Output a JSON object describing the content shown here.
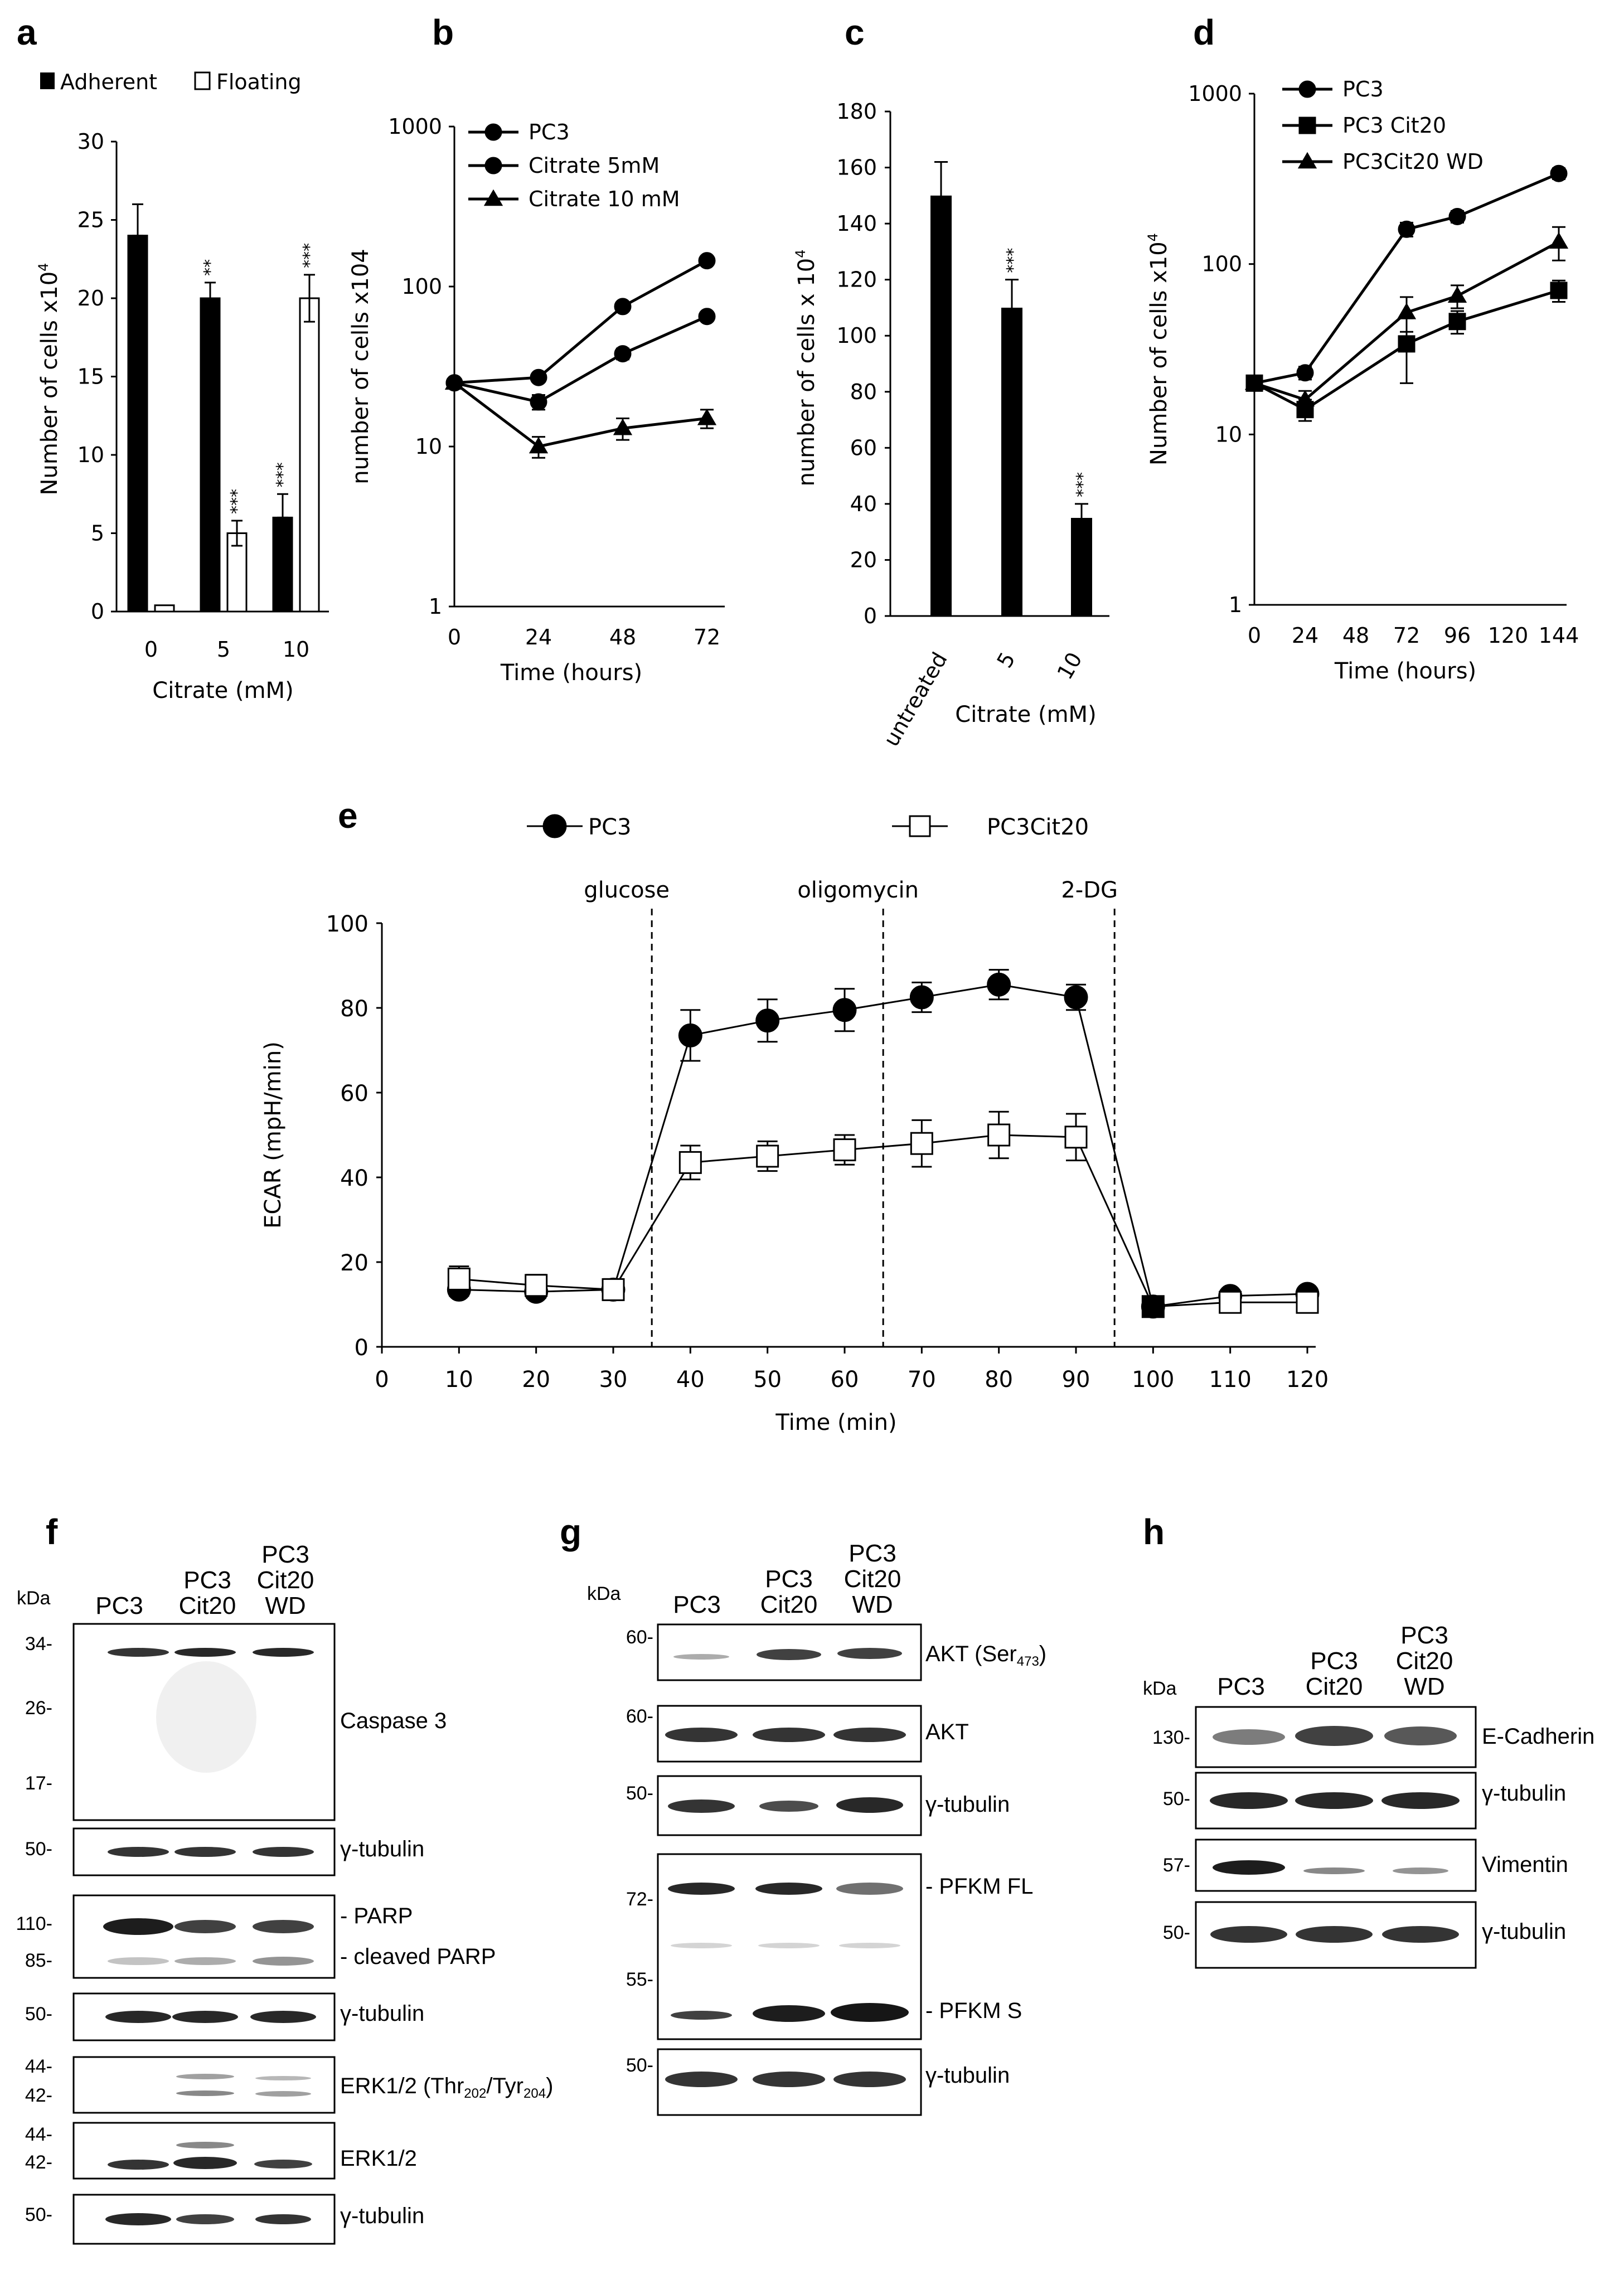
{
  "panels": {
    "a": "a",
    "b": "b",
    "c": "c",
    "d": "d",
    "e": "e",
    "f": "f",
    "g": "g",
    "h": "h"
  },
  "chart_data": [
    {
      "id": "a",
      "type": "bar",
      "title": "",
      "categories": [
        "0",
        "5",
        "10"
      ],
      "series": [
        {
          "name": "Adherent",
          "values": [
            24,
            20,
            6
          ],
          "errors": [
            2,
            1,
            1.5
          ],
          "stars": [
            "",
            "**",
            "***"
          ]
        },
        {
          "name": "Floating",
          "values": [
            0.4,
            5,
            20
          ],
          "errors": [
            0,
            0.8,
            1.5
          ],
          "stars": [
            "",
            "***",
            "***"
          ]
        }
      ],
      "xlabel": "Citrate (mM)",
      "ylabel": "Number of cells x10",
      "ylabel_sup": "4",
      "ylim": [
        0,
        30
      ],
      "yticks": [
        "0",
        "5",
        "10",
        "15",
        "20",
        "25",
        "30"
      ],
      "legend": "top"
    },
    {
      "id": "b",
      "type": "line",
      "yscale": "log",
      "x": [
        0,
        24,
        48,
        72
      ],
      "xticks": [
        "0",
        "24",
        "48",
        "72"
      ],
      "series": [
        {
          "name": "PC3",
          "marker": "circle",
          "values": [
            25,
            27,
            75,
            145
          ],
          "errors": [
            0,
            1.5,
            4,
            8
          ]
        },
        {
          "name": "Citrate  5mM",
          "marker": "circle",
          "values": [
            25,
            19,
            38,
            65
          ],
          "errors": [
            0,
            2,
            3,
            4
          ]
        },
        {
          "name": "Citrate 10 mM",
          "marker": "triangle",
          "values": [
            25,
            10,
            13,
            15
          ],
          "errors": [
            0,
            1.5,
            2,
            2
          ]
        }
      ],
      "xlabel": "Time (hours)",
      "ylabel": "number of cells x104",
      "ylim": [
        1,
        1000
      ],
      "yticks": [
        "1",
        "10",
        "100",
        "1000"
      ],
      "legend": "top-left"
    },
    {
      "id": "c",
      "type": "bar",
      "categories": [
        "untreated",
        "5",
        "10"
      ],
      "values": [
        150,
        110,
        35
      ],
      "errors": [
        12,
        10,
        5
      ],
      "stars": [
        "",
        "***",
        "***"
      ],
      "xlabel": "Citrate (mM)",
      "ylabel": "number of cells x 10",
      "ylabel_sup": "4",
      "ylim": [
        0,
        180
      ],
      "yticks": [
        "0",
        "20",
        "40",
        "60",
        "80",
        "100",
        "120",
        "140",
        "160",
        "180"
      ]
    },
    {
      "id": "d",
      "type": "line",
      "yscale": "log",
      "x": [
        0,
        24,
        72,
        96,
        144
      ],
      "xticks": [
        "0",
        "24",
        "48",
        "72",
        "96",
        "120",
        "144"
      ],
      "series": [
        {
          "name": "PC3",
          "marker": "circle",
          "values": [
            20,
            23,
            160,
            190,
            340
          ],
          "errors": [
            0,
            2,
            15,
            15,
            25
          ]
        },
        {
          "name": "PC3 Cit20",
          "marker": "square",
          "values": [
            20,
            14,
            34,
            46,
            70
          ],
          "errors": [
            0,
            2,
            14,
            7,
            10
          ]
        },
        {
          "name": "PC3Cit20 WD",
          "marker": "triangle",
          "values": [
            20,
            16,
            52,
            65,
            135
          ],
          "errors": [
            0,
            2,
            12,
            10,
            30
          ]
        }
      ],
      "xlabel": "Time (hours)",
      "ylabel": "Number of cells x10",
      "ylabel_sup": "4",
      "ylim": [
        1,
        1000
      ],
      "yticks": [
        "1",
        "10",
        "100",
        "1000"
      ],
      "legend": "top-left"
    },
    {
      "id": "e",
      "type": "line",
      "x": [
        10,
        20,
        30,
        40,
        50,
        60,
        70,
        80,
        90,
        100,
        110,
        120
      ],
      "xticks": [
        "0",
        "10",
        "20",
        "30",
        "40",
        "50",
        "60",
        "70",
        "80",
        "90",
        "100",
        "110",
        "120"
      ],
      "series": [
        {
          "name": "PC3",
          "marker": "circle",
          "values": [
            13.5,
            13,
            13.5,
            73.5,
            77,
            79.5,
            82.5,
            85.5,
            82.5,
            9.5,
            12,
            12.5
          ],
          "errors": [
            1.5,
            1.5,
            2,
            6,
            5,
            5,
            3.5,
            3.5,
            3,
            1,
            1,
            1
          ]
        },
        {
          "name": "PC3Cit20",
          "marker": "square",
          "values": [
            16,
            14.5,
            13.5,
            43.5,
            45,
            46.5,
            48,
            50,
            49.5,
            9.5,
            10.5,
            10.5
          ],
          "errors": [
            3,
            2.5,
            2.5,
            4,
            3.5,
            3.5,
            5.5,
            5.5,
            5.5,
            2,
            1,
            1
          ]
        }
      ],
      "injections": [
        {
          "label": "glucose",
          "x": 35
        },
        {
          "label": "oligomycin",
          "x": 65
        },
        {
          "label": "2-DG",
          "x": 95
        }
      ],
      "xlabel": "Time (min)",
      "ylabel": "ECAR (mpH/min)",
      "ylim": [
        0,
        100
      ],
      "yticks": [
        "0",
        "20",
        "40",
        "60",
        "80",
        "100"
      ],
      "xlim": [
        0,
        120
      ],
      "legend": "top"
    }
  ],
  "blots": {
    "kda": "kDa",
    "lanes_two": "PC3",
    "f": {
      "lanes": [
        [
          "PC3"
        ],
        [
          "PC3",
          "Cit20"
        ],
        [
          "PC3",
          "Cit20",
          "WD"
        ]
      ],
      "labels": {
        "casp3": "Caspase 3",
        "tub": "γ-tubulin",
        "parp": "- PARP",
        "cparp": "- cleaved PARP",
        "perk": "ERK1/2 (Thr",
        "perk_s1": "202",
        "perk_mid": "/Tyr",
        "perk_s2": "204",
        "perk_end": ")",
        "erk": "ERK1/2"
      },
      "markers": {
        "m34": "34-",
        "m26": "26-",
        "m17": "17-",
        "m50": "50-",
        "m110": "110-",
        "m85": "85-",
        "m44": "44-",
        "m42": "42-"
      }
    },
    "g": {
      "lanes": [
        [
          "PC3"
        ],
        [
          "PC3",
          "Cit20"
        ],
        [
          "PC3",
          "Cit20",
          "WD"
        ]
      ],
      "labels": {
        "pakt": "AKT (Ser",
        "pakt_s": "473",
        "pakt_end": ")",
        "akt": "AKT",
        "tub": "γ-tubulin",
        "pfkmfl": "- PFKM FL",
        "pfkms": "- PFKM S"
      },
      "markers": {
        "m60": "60-",
        "m50": "50-",
        "m72": "72-",
        "m55": "55-"
      }
    },
    "h": {
      "lanes": [
        [
          "PC3"
        ],
        [
          "PC3",
          "Cit20"
        ],
        [
          "PC3",
          "Cit20",
          "WD"
        ]
      ],
      "labels": {
        "ecad": "E-Cadherin",
        "tub": "γ-tubulin",
        "vim": "Vimentin"
      },
      "markers": {
        "m130": "130-",
        "m50": "50-",
        "m57": "57-"
      }
    }
  }
}
